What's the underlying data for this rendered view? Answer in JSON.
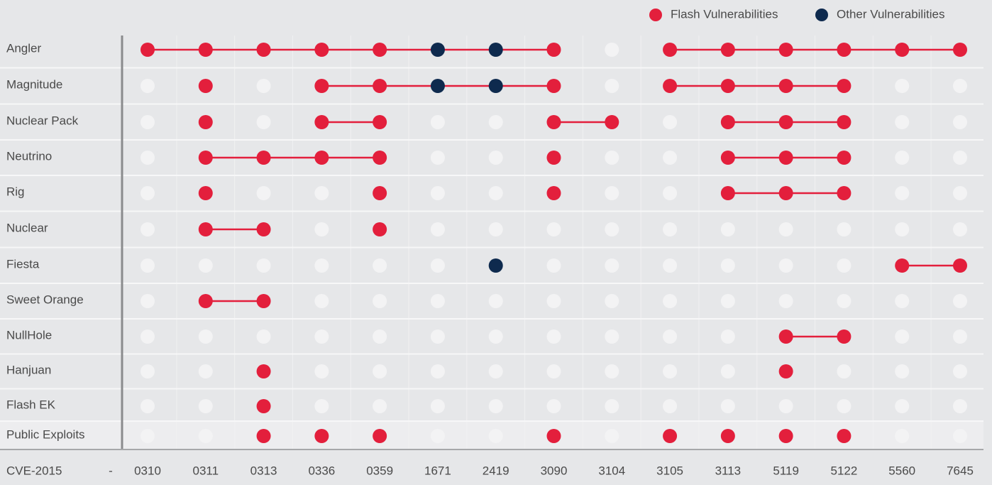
{
  "chart_data": {
    "type": "dot-matrix",
    "series": [
      {
        "name": "Flash Vulnerabilities",
        "color": "#e31f3c"
      },
      {
        "name": "Other Vulnerabilities",
        "color": "#0e2a4e"
      }
    ],
    "x_prefix": "CVE-2015",
    "x_separator": "-",
    "categories": [
      "0310",
      "0311",
      "0313",
      "0336",
      "0359",
      "1671",
      "2419",
      "3090",
      "3104",
      "3105",
      "3113",
      "5119",
      "5122",
      "5560",
      "7645"
    ],
    "rows": [
      {
        "label": "Angler",
        "cells": [
          0,
          0,
          0,
          0,
          0,
          1,
          1,
          0,
          null,
          0,
          0,
          0,
          0,
          0,
          0
        ],
        "links": [
          [
            0,
            7
          ],
          [
            9,
            14
          ]
        ]
      },
      {
        "label": "Magnitude",
        "cells": [
          null,
          0,
          null,
          0,
          0,
          1,
          1,
          0,
          null,
          0,
          0,
          0,
          0,
          null,
          null
        ],
        "links": [
          [
            3,
            7
          ],
          [
            9,
            12
          ]
        ]
      },
      {
        "label": "Nuclear Pack",
        "cells": [
          null,
          0,
          null,
          0,
          0,
          null,
          null,
          0,
          0,
          null,
          0,
          0,
          0,
          null,
          null
        ],
        "links": [
          [
            3,
            4
          ],
          [
            7,
            8
          ],
          [
            10,
            12
          ]
        ]
      },
      {
        "label": "Neutrino",
        "cells": [
          null,
          0,
          0,
          0,
          0,
          null,
          null,
          0,
          null,
          null,
          0,
          0,
          0,
          null,
          null
        ],
        "links": [
          [
            1,
            4
          ],
          [
            10,
            12
          ]
        ]
      },
      {
        "label": "Rig",
        "cells": [
          null,
          0,
          null,
          null,
          0,
          null,
          null,
          0,
          null,
          null,
          0,
          0,
          0,
          null,
          null
        ],
        "links": [
          [
            10,
            12
          ]
        ]
      },
      {
        "label": "Nuclear",
        "cells": [
          null,
          0,
          0,
          null,
          0,
          null,
          null,
          null,
          null,
          null,
          null,
          null,
          null,
          null,
          null
        ],
        "links": [
          [
            1,
            2
          ]
        ]
      },
      {
        "label": "Fiesta",
        "cells": [
          null,
          null,
          null,
          null,
          null,
          null,
          1,
          null,
          null,
          null,
          null,
          null,
          null,
          0,
          0
        ],
        "links": [
          [
            13,
            14
          ]
        ]
      },
      {
        "label": "Sweet Orange",
        "cells": [
          null,
          0,
          0,
          null,
          null,
          null,
          null,
          null,
          null,
          null,
          null,
          null,
          null,
          null,
          null
        ],
        "links": [
          [
            1,
            2
          ]
        ]
      },
      {
        "label": "NullHole",
        "cells": [
          null,
          null,
          null,
          null,
          null,
          null,
          null,
          null,
          null,
          null,
          null,
          0,
          0,
          null,
          null
        ],
        "links": [
          [
            11,
            12
          ]
        ]
      },
      {
        "label": "Hanjuan",
        "cells": [
          null,
          null,
          0,
          null,
          null,
          null,
          null,
          null,
          null,
          null,
          null,
          0,
          null,
          null,
          null
        ],
        "links": []
      },
      {
        "label": "Flash EK",
        "cells": [
          null,
          null,
          0,
          null,
          null,
          null,
          null,
          null,
          null,
          null,
          null,
          null,
          null,
          null,
          null
        ],
        "links": []
      },
      {
        "label": "Public Exploits",
        "cells": [
          null,
          null,
          0,
          0,
          0,
          null,
          null,
          0,
          null,
          0,
          0,
          0,
          0,
          null,
          null
        ],
        "links": []
      }
    ]
  }
}
